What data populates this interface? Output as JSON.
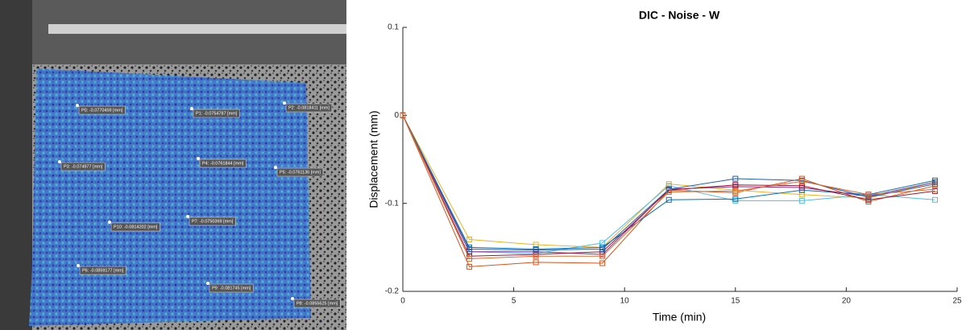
{
  "image": {
    "point_labels": [
      "P0: -0.0770459 [mm]",
      "P1: -0.0754787 [mm]",
      "P2: -0.0818411 [mm]",
      "P3: -0.074977 [mm]",
      "P4: -0.0761844 [mm]",
      "P5: -0.0761136 [mm]",
      "P10: -0.0814202 [mm]",
      "P7: -0.0750369 [mm]",
      "P6: -0.0859177 [mm]",
      "P9: -0.081745 [mm]",
      "P8: -0.0855625 [mm]"
    ]
  },
  "chart_data": {
    "type": "line",
    "title": "DIC - Noise - W",
    "x_label": "Time (min)",
    "y_label": "Displacement (mm)",
    "x": [
      0,
      3,
      6,
      9,
      12,
      15,
      18,
      21,
      24
    ],
    "series": [
      {
        "color": "#D95319",
        "values": [
          0,
          -0.172,
          -0.167,
          -0.168,
          -0.085,
          -0.088,
          -0.072,
          -0.098,
          -0.08
        ]
      },
      {
        "color": "#EDB120",
        "values": [
          0,
          -0.141,
          -0.147,
          -0.15,
          -0.078,
          -0.085,
          -0.09,
          -0.094,
          -0.076
        ]
      },
      {
        "color": "#4DBEEE",
        "values": [
          0,
          -0.155,
          -0.157,
          -0.145,
          -0.08,
          -0.097,
          -0.097,
          -0.09,
          -0.096
        ]
      },
      {
        "color": "#0072BD",
        "values": [
          0,
          -0.15,
          -0.152,
          -0.15,
          -0.096,
          -0.095,
          -0.085,
          -0.09,
          -0.074
        ]
      },
      {
        "color": "#7E2F8E",
        "values": [
          0,
          -0.155,
          -0.155,
          -0.158,
          -0.084,
          -0.081,
          -0.082,
          -0.092,
          -0.076
        ]
      },
      {
        "color": "#A2142F",
        "values": [
          0,
          -0.16,
          -0.158,
          -0.155,
          -0.085,
          -0.079,
          -0.08,
          -0.096,
          -0.086
        ]
      },
      {
        "color": "#1F5FA8",
        "values": [
          0,
          -0.152,
          -0.153,
          -0.152,
          -0.084,
          -0.072,
          -0.074,
          -0.093,
          -0.078
        ]
      },
      {
        "color": "#E06A2A",
        "values": [
          0,
          -0.163,
          -0.16,
          -0.16,
          -0.087,
          -0.086,
          -0.075,
          -0.09,
          -0.084
        ]
      }
    ],
    "xlim": [
      0,
      25
    ],
    "xticks": [
      0,
      5,
      10,
      15,
      20,
      25
    ],
    "ylim": [
      -0.2,
      0.1
    ],
    "yticks": [
      -0.2,
      -0.1,
      0,
      0.1
    ],
    "marker": "square"
  }
}
